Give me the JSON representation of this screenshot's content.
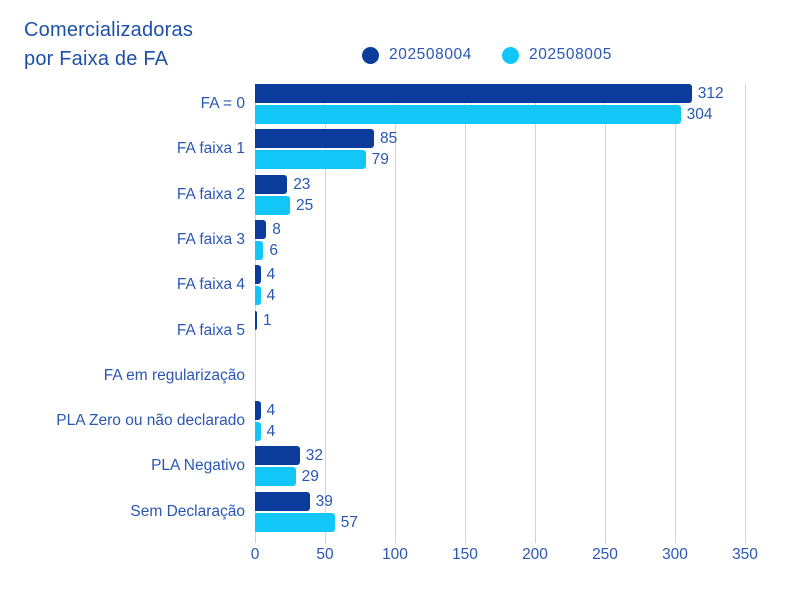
{
  "title": {
    "line1": "Comercializadoras",
    "line2": "por Faixa de FA"
  },
  "colors": {
    "background": "#ffffff",
    "title_text": "#1d51a8",
    "label_text": "#2a57b5",
    "gridline": "#c9d5ec",
    "series_dark_blue": "#0b3c9b",
    "series_cyan": "#12c6f7"
  },
  "chart_data": {
    "type": "bar",
    "orientation": "horizontal",
    "title": "Comercializadoras por Faixa de FA",
    "xlabel": "",
    "ylabel": "",
    "grid": true,
    "legend_position": "top",
    "value_labels": "end of bar, hidden when value is 0",
    "categories": [
      "FA = 0",
      "FA faixa 1",
      "FA faixa 2",
      "FA faixa 3",
      "FA faixa 4",
      "FA faixa 5",
      "FA em regularização",
      "PLA Zero ou não declarado",
      "PLA Negativo",
      "Sem Declaração"
    ],
    "series": [
      {
        "name": "202508004",
        "color": "#0b3c9b",
        "values": [
          312,
          85,
          23,
          8,
          4,
          1,
          0,
          4,
          32,
          39
        ]
      },
      {
        "name": "202508005",
        "color": "#12c6f7",
        "values": [
          304,
          79,
          25,
          6,
          4,
          0,
          0,
          4,
          29,
          57
        ]
      }
    ],
    "x_ticks": [
      0,
      50,
      100,
      150,
      200,
      250,
      300,
      350
    ],
    "xlim": [
      0,
      355
    ]
  }
}
